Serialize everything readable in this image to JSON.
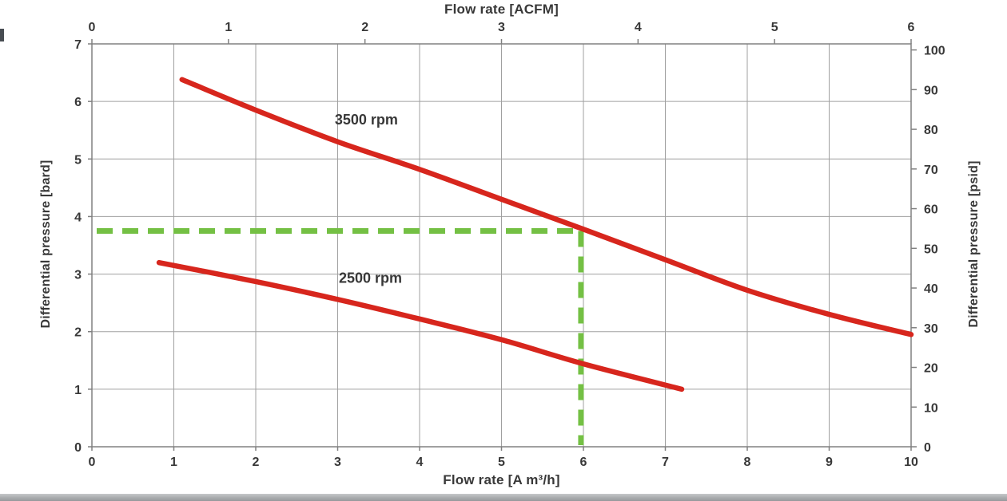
{
  "page": {
    "background": "#ffffff"
  },
  "chart_data": {
    "type": "line",
    "title": "",
    "axes": {
      "top": {
        "label": "Flow rate [ACFM]",
        "min": 0,
        "max": 6,
        "ticks": [
          0,
          1,
          2,
          3,
          4,
          5,
          6
        ]
      },
      "bottom": {
        "label": "Flow rate [A m³/h]",
        "min": 0,
        "max": 10,
        "ticks": [
          0,
          1,
          2,
          3,
          4,
          5,
          6,
          7,
          8,
          9,
          10
        ]
      },
      "left": {
        "label": "Differential pressure [bard]",
        "min": 0,
        "max": 7,
        "ticks": [
          0,
          1,
          2,
          3,
          4,
          5,
          6,
          7
        ]
      },
      "right": {
        "label": "Differential pressure [psid]",
        "min": 0,
        "max": 100,
        "ticks": [
          0,
          10,
          20,
          30,
          40,
          50,
          60,
          70,
          80,
          90,
          100
        ],
        "psi_per_bar": 14.5038
      }
    },
    "grid": {
      "color": "#a0a0a0",
      "border_color": "#808080",
      "grid_on": true
    },
    "legend": "inline-labels",
    "text_color": "#383838",
    "series": [
      {
        "name": "3500 rpm",
        "color": "#d7261d",
        "width": 6.5,
        "points": [
          [
            1.1,
            6.38
          ],
          [
            2,
            5.85
          ],
          [
            3,
            5.3
          ],
          [
            4,
            4.82
          ],
          [
            5,
            4.3
          ],
          [
            6,
            3.78
          ],
          [
            7,
            3.25
          ],
          [
            8,
            2.72
          ],
          [
            9,
            2.3
          ],
          [
            10,
            1.95
          ]
        ],
        "label": {
          "text": "3500 rpm",
          "x": 3.35,
          "y": 5.6
        }
      },
      {
        "name": "2500 rpm",
        "color": "#d7261d",
        "width": 6.5,
        "points": [
          [
            0.82,
            3.2
          ],
          [
            2,
            2.87
          ],
          [
            3,
            2.56
          ],
          [
            4,
            2.22
          ],
          [
            5,
            1.86
          ],
          [
            6,
            1.44
          ],
          [
            7.2,
            1.0
          ]
        ],
        "label": {
          "text": "2500 rpm",
          "x": 3.4,
          "y": 2.85
        }
      }
    ],
    "guideline": {
      "color": "#74c044",
      "width": 7,
      "dash": "20 12",
      "x": 5.97,
      "y": 3.75
    }
  }
}
